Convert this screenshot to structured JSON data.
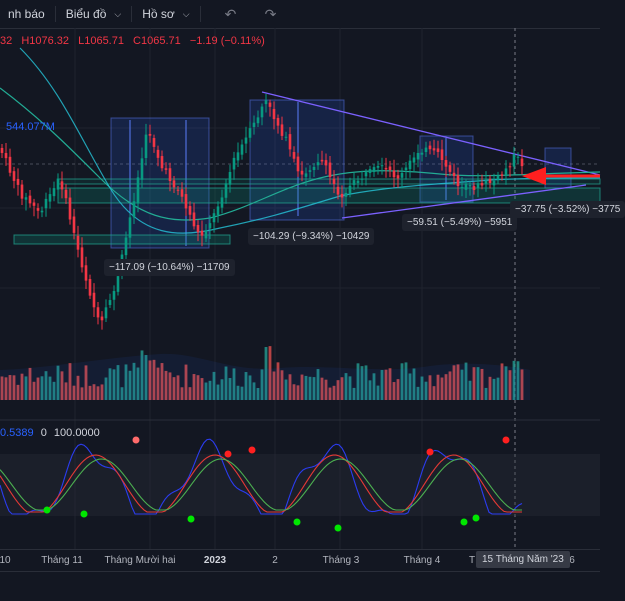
{
  "toolbar": {
    "item1_label": "nh báo",
    "item2_label": "Biểu đồ",
    "item3_label": "Hồ sơ",
    "undo_icon": "undo-icon",
    "redo_icon": "redo-icon"
  },
  "ohlc": {
    "open": "32",
    "high": "H1076.32",
    "low": "L1065.71",
    "close": "C1065.71",
    "change": "−1.19 (−0.11%)"
  },
  "volume_label": "544.077M",
  "oscillator": {
    "value1": "0.5389",
    "value2": "0",
    "value3": "100.0000"
  },
  "measurements": [
    {
      "label": "−117.09 (−10.64%) −11709"
    },
    {
      "label": "−104.29 (−9.34%) −10429"
    },
    {
      "label": "−59.51 (−5.49%) −5951"
    },
    {
      "label": "−37.75 (−3.52%) −3775"
    }
  ],
  "xaxis": {
    "labels": [
      "10",
      "Tháng 11",
      "Tháng Mười hai",
      "2023",
      "2",
      "Tháng 3",
      "Tháng 4",
      "T",
      "6"
    ],
    "crosshair": "15 Tháng Năm '23"
  },
  "colors": {
    "background": "#131722",
    "up": "#089981",
    "down": "#f23645",
    "ma": "#22ab94",
    "stoch_k": "#2b3cf0",
    "stoch_d": "#e53935",
    "arrow": "#ff1f1f"
  }
}
